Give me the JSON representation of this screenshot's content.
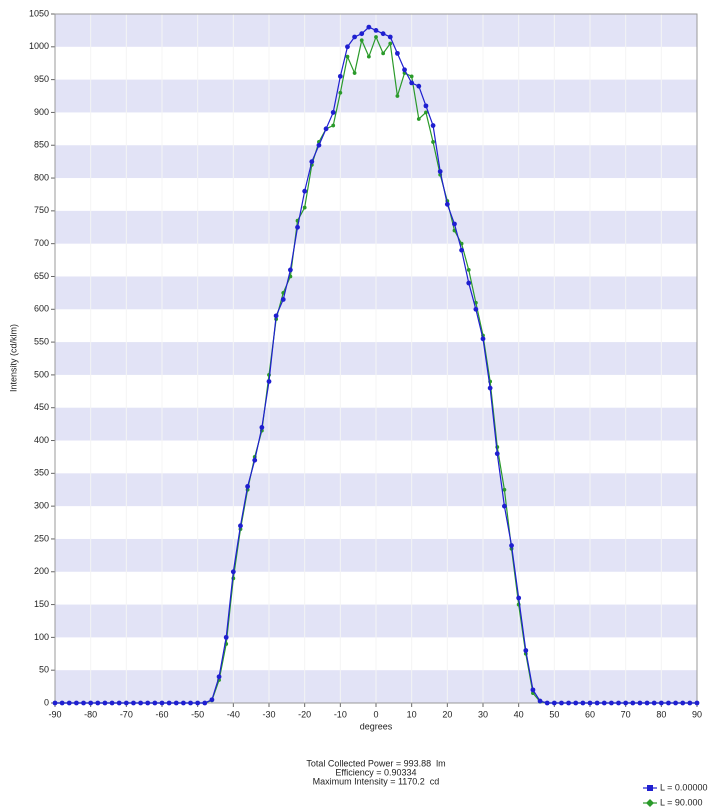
{
  "chart_data": {
    "type": "line",
    "ylabel": "Intensity (cd/klm)",
    "xlabel": "degrees",
    "x": [
      -90,
      -88,
      -86,
      -84,
      -82,
      -80,
      -78,
      -76,
      -74,
      -72,
      -70,
      -68,
      -66,
      -64,
      -62,
      -60,
      -58,
      -56,
      -54,
      -52,
      -50,
      -48,
      -46,
      -44,
      -42,
      -40,
      -38,
      -36,
      -34,
      -32,
      -30,
      -28,
      -26,
      -24,
      -22,
      -20,
      -18,
      -16,
      -14,
      -12,
      -10,
      -8,
      -6,
      -4,
      -2,
      0,
      2,
      4,
      6,
      8,
      10,
      12,
      14,
      16,
      18,
      20,
      22,
      24,
      26,
      28,
      30,
      32,
      34,
      36,
      38,
      40,
      42,
      44,
      46,
      48,
      50,
      52,
      54,
      56,
      58,
      60,
      62,
      64,
      66,
      68,
      70,
      72,
      74,
      76,
      78,
      80,
      82,
      84,
      86,
      88,
      90
    ],
    "series": [
      {
        "name": "L = 0.00000",
        "color": "#1f1fd0",
        "values": [
          0,
          0,
          0,
          0,
          0,
          0,
          0,
          0,
          0,
          0,
          0,
          0,
          0,
          0,
          0,
          0,
          0,
          0,
          0,
          0,
          0,
          0,
          5,
          40,
          100,
          200,
          270,
          330,
          370,
          420,
          490,
          590,
          615,
          660,
          725,
          780,
          825,
          850,
          875,
          900,
          955,
          1000,
          1015,
          1020,
          1030,
          1025,
          1020,
          1015,
          990,
          965,
          945,
          940,
          910,
          880,
          810,
          760,
          730,
          690,
          640,
          600,
          555,
          480,
          380,
          300,
          240,
          160,
          80,
          20,
          3,
          0,
          0,
          0,
          0,
          0,
          0,
          0,
          0,
          0,
          0,
          0,
          0,
          0,
          0,
          0,
          0,
          0,
          0,
          0,
          0,
          0,
          0
        ]
      },
      {
        "name": "L = 90.000",
        "color": "#2a9a2a",
        "values": [
          0,
          0,
          0,
          0,
          0,
          0,
          0,
          0,
          0,
          0,
          0,
          0,
          0,
          0,
          0,
          0,
          0,
          0,
          0,
          0,
          0,
          0,
          4,
          35,
          90,
          190,
          265,
          325,
          375,
          415,
          500,
          585,
          625,
          650,
          735,
          755,
          820,
          855,
          875,
          880,
          930,
          985,
          960,
          1010,
          985,
          1015,
          990,
          1005,
          925,
          960,
          955,
          890,
          900,
          855,
          805,
          765,
          720,
          700,
          660,
          610,
          560,
          490,
          390,
          325,
          235,
          150,
          75,
          15,
          2,
          0,
          0,
          0,
          0,
          0,
          0,
          0,
          0,
          0,
          0,
          0,
          0,
          0,
          0,
          0,
          0,
          0,
          0,
          0,
          0,
          0,
          0
        ]
      }
    ],
    "xlim": [
      -90,
      90
    ],
    "xticks": [
      -90,
      -80,
      -70,
      -60,
      -50,
      -40,
      -30,
      -20,
      -10,
      0,
      10,
      20,
      30,
      40,
      50,
      60,
      70,
      80,
      90
    ],
    "ylim": [
      0,
      1050
    ],
    "yticks": [
      0,
      50,
      100,
      150,
      200,
      250,
      300,
      350,
      400,
      450,
      500,
      550,
      600,
      650,
      700,
      750,
      800,
      850,
      900,
      950,
      1000,
      1050
    ],
    "footer": [
      "Total Collected Power = 993.88  lm",
      "Efficiency = 0.90334",
      "Maximum Intensity = 1170.2  cd"
    ]
  }
}
